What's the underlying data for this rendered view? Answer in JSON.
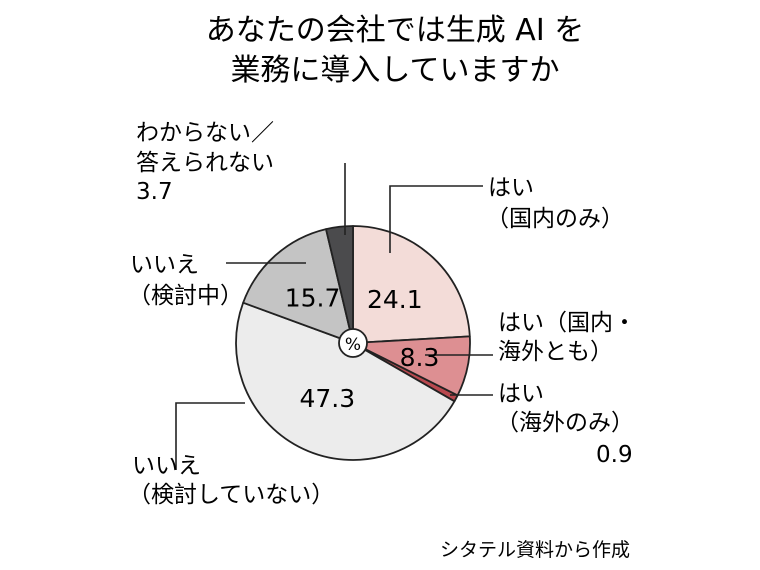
{
  "chart_data": {
    "type": "pie",
    "title_lines": [
      "あなたの会社では生成 AI を",
      "業務に導入していますか"
    ],
    "center_label": "%",
    "start_angle_deg": 0,
    "direction": "clockwise",
    "slices": [
      {
        "key": "yes_domestic",
        "label_lines": [
          "はい",
          "（国内のみ）"
        ],
        "value": 24.1,
        "value_label": "24.1",
        "color": "#f3dcd8",
        "show_value_inside": true
      },
      {
        "key": "yes_both",
        "label_lines": [
          "はい（国内・",
          "海外とも）"
        ],
        "value": 8.3,
        "value_label": "8.3",
        "color": "#dd8f92",
        "show_value_inside": true
      },
      {
        "key": "yes_overseas",
        "label_lines": [
          "はい",
          "（海外のみ）",
          "0.9"
        ],
        "value": 0.9,
        "value_label": "0.9",
        "color": "#b9494f",
        "show_value_inside": false
      },
      {
        "key": "no_not_planned",
        "label_lines": [
          "いいえ",
          "（検討していない）"
        ],
        "value": 47.3,
        "value_label": "47.3",
        "color": "#ececec",
        "show_value_inside": true
      },
      {
        "key": "no_considering",
        "label_lines": [
          "いいえ",
          "（検討中）"
        ],
        "value": 15.7,
        "value_label": "15.7",
        "color": "#c4c4c4",
        "show_value_inside": true
      },
      {
        "key": "unknown",
        "label_lines": [
          "わからない／",
          "答えられない",
          "3.7"
        ],
        "value": 3.7,
        "value_label": "3.7",
        "color": "#4b4b4d",
        "show_value_inside": false
      }
    ],
    "source": "シタテル資料から作成"
  }
}
